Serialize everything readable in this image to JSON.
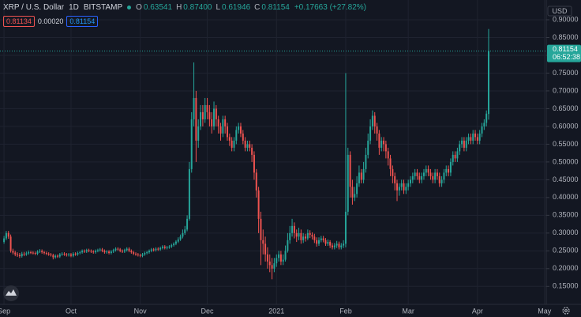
{
  "chart_data": {
    "type": "candlestick",
    "symbol": "XRP / U.S. Dollar",
    "interval": "1D",
    "exchange": "BITSTAMP",
    "ohlc_legend": [
      {
        "key": "O",
        "value": "0.63541"
      },
      {
        "key": "H",
        "value": "0.87400"
      },
      {
        "key": "L",
        "value": "0.61946"
      },
      {
        "key": "C",
        "value": "0.81154"
      }
    ],
    "change": "+0.17663 (+27.82%)",
    "indicator_values": [
      "0.81134",
      "0.00020",
      "0.81154"
    ],
    "currency": "USD",
    "countdown": "06:52:38",
    "up_color": "#26a69a",
    "down_color": "#ef5350",
    "grid": true,
    "xlim": [
      -1.8,
      242.8
    ],
    "xticks": [
      {
        "value": 0,
        "label": "Sep"
      },
      {
        "value": 30,
        "label": "Oct"
      },
      {
        "value": 61,
        "label": "Nov"
      },
      {
        "value": 91,
        "label": "Dec"
      },
      {
        "value": 122,
        "label": "2021"
      },
      {
        "value": 153,
        "label": "Feb"
      },
      {
        "value": 181,
        "label": "Mar"
      },
      {
        "value": 212,
        "label": "Apr"
      },
      {
        "value": 242,
        "label": "May"
      }
    ],
    "ylim": [
      0.0995,
      0.9556
    ],
    "yticks": [
      {
        "value": 0.15,
        "label": "0.15000"
      },
      {
        "value": 0.2,
        "label": "0.20000"
      },
      {
        "value": 0.25,
        "label": "0.25000"
      },
      {
        "value": 0.3,
        "label": "0.30000"
      },
      {
        "value": 0.35,
        "label": "0.35000"
      },
      {
        "value": 0.4,
        "label": "0.40000"
      },
      {
        "value": 0.45,
        "label": "0.45000"
      },
      {
        "value": 0.5,
        "label": "0.50000"
      },
      {
        "value": 0.55,
        "label": "0.55000"
      },
      {
        "value": 0.6,
        "label": "0.60000"
      },
      {
        "value": 0.65,
        "label": "0.65000"
      },
      {
        "value": 0.7,
        "label": "0.70000"
      },
      {
        "value": 0.75,
        "label": "0.75000"
      },
      {
        "value": 0.8,
        "label": "0.80000"
      },
      {
        "value": 0.85,
        "label": "0.85000"
      },
      {
        "value": 0.9,
        "label": "0.90000"
      }
    ],
    "open": [
      0.275,
      0.285,
      0.3,
      0.29,
      0.25,
      0.245,
      0.24,
      0.238,
      0.235,
      0.242,
      0.24,
      0.243,
      0.246,
      0.245,
      0.244,
      0.242,
      0.248,
      0.25,
      0.246,
      0.244,
      0.242,
      0.24,
      0.238,
      0.232,
      0.236,
      0.234,
      0.24,
      0.242,
      0.24,
      0.238,
      0.24,
      0.236,
      0.242,
      0.24,
      0.244,
      0.246,
      0.25,
      0.248,
      0.252,
      0.25,
      0.248,
      0.246,
      0.25,
      0.252,
      0.254,
      0.25,
      0.246,
      0.248,
      0.244,
      0.248,
      0.252,
      0.256,
      0.254,
      0.25,
      0.248,
      0.252,
      0.256,
      0.25,
      0.246,
      0.242,
      0.24,
      0.238,
      0.236,
      0.24,
      0.244,
      0.246,
      0.25,
      0.254,
      0.252,
      0.256,
      0.254,
      0.258,
      0.262,
      0.258,
      0.26,
      0.262,
      0.266,
      0.27,
      0.276,
      0.282,
      0.29,
      0.3,
      0.31,
      0.34,
      0.48,
      0.62,
      0.68,
      0.56,
      0.6,
      0.64,
      0.62,
      0.66,
      0.64,
      0.62,
      0.6,
      0.65,
      0.62,
      0.6,
      0.58,
      0.62,
      0.6,
      0.57,
      0.56,
      0.54,
      0.56,
      0.59,
      0.6,
      0.58,
      0.56,
      0.54,
      0.55,
      0.54,
      0.52,
      0.47,
      0.42,
      0.34,
      0.28,
      0.27,
      0.24,
      0.22,
      0.21,
      0.2,
      0.215,
      0.23,
      0.24,
      0.22,
      0.225,
      0.25,
      0.28,
      0.3,
      0.32,
      0.3,
      0.29,
      0.3,
      0.28,
      0.29,
      0.285,
      0.3,
      0.295,
      0.29,
      0.28,
      0.27,
      0.28,
      0.285,
      0.28,
      0.27,
      0.275,
      0.265,
      0.26,
      0.265,
      0.27,
      0.26,
      0.265,
      0.27,
      0.36,
      0.52,
      0.43,
      0.4,
      0.41,
      0.44,
      0.47,
      0.45,
      0.48,
      0.52,
      0.56,
      0.6,
      0.63,
      0.6,
      0.58,
      0.54,
      0.56,
      0.55,
      0.53,
      0.51,
      0.48,
      0.46,
      0.44,
      0.42,
      0.43,
      0.44,
      0.42,
      0.43,
      0.44,
      0.45,
      0.46,
      0.47,
      0.46,
      0.45,
      0.46,
      0.47,
      0.48,
      0.47,
      0.46,
      0.45,
      0.47,
      0.46,
      0.44,
      0.45,
      0.47,
      0.48,
      0.47,
      0.5,
      0.52,
      0.51,
      0.53,
      0.55,
      0.56,
      0.54,
      0.56,
      0.57,
      0.56,
      0.58,
      0.57,
      0.56,
      0.58,
      0.6,
      0.61,
      0.635
    ],
    "high": [
      0.292,
      0.306,
      0.306,
      0.296,
      0.256,
      0.25,
      0.246,
      0.244,
      0.247,
      0.247,
      0.248,
      0.251,
      0.25,
      0.249,
      0.248,
      0.252,
      0.255,
      0.254,
      0.25,
      0.248,
      0.246,
      0.244,
      0.242,
      0.24,
      0.24,
      0.244,
      0.246,
      0.246,
      0.244,
      0.244,
      0.244,
      0.246,
      0.246,
      0.248,
      0.25,
      0.254,
      0.254,
      0.256,
      0.256,
      0.254,
      0.252,
      0.254,
      0.256,
      0.258,
      0.258,
      0.254,
      0.252,
      0.252,
      0.252,
      0.256,
      0.26,
      0.26,
      0.258,
      0.254,
      0.256,
      0.26,
      0.26,
      0.254,
      0.25,
      0.246,
      0.244,
      0.242,
      0.244,
      0.248,
      0.25,
      0.254,
      0.258,
      0.258,
      0.26,
      0.26,
      0.262,
      0.266,
      0.266,
      0.264,
      0.266,
      0.27,
      0.274,
      0.28,
      0.288,
      0.296,
      0.31,
      0.32,
      0.35,
      0.5,
      0.64,
      0.78,
      0.7,
      0.62,
      0.66,
      0.66,
      0.68,
      0.68,
      0.66,
      0.64,
      0.67,
      0.66,
      0.63,
      0.61,
      0.63,
      0.63,
      0.61,
      0.58,
      0.57,
      0.57,
      0.6,
      0.61,
      0.61,
      0.59,
      0.57,
      0.56,
      0.56,
      0.55,
      0.53,
      0.48,
      0.43,
      0.36,
      0.31,
      0.29,
      0.26,
      0.24,
      0.23,
      0.23,
      0.24,
      0.25,
      0.25,
      0.24,
      0.265,
      0.3,
      0.32,
      0.34,
      0.33,
      0.31,
      0.315,
      0.31,
      0.3,
      0.298,
      0.31,
      0.308,
      0.302,
      0.298,
      0.288,
      0.288,
      0.292,
      0.292,
      0.286,
      0.282,
      0.28,
      0.272,
      0.272,
      0.278,
      0.276,
      0.272,
      0.28,
      0.75,
      0.54,
      0.53,
      0.45,
      0.43,
      0.46,
      0.49,
      0.48,
      0.5,
      0.54,
      0.58,
      0.62,
      0.645,
      0.64,
      0.61,
      0.59,
      0.57,
      0.57,
      0.56,
      0.54,
      0.52,
      0.49,
      0.47,
      0.45,
      0.44,
      0.45,
      0.45,
      0.44,
      0.45,
      0.46,
      0.47,
      0.48,
      0.48,
      0.47,
      0.47,
      0.48,
      0.49,
      0.49,
      0.48,
      0.47,
      0.48,
      0.48,
      0.47,
      0.46,
      0.48,
      0.49,
      0.49,
      0.51,
      0.53,
      0.53,
      0.54,
      0.56,
      0.57,
      0.57,
      0.57,
      0.58,
      0.58,
      0.59,
      0.59,
      0.58,
      0.59,
      0.61,
      0.62,
      0.645,
      0.874
    ],
    "low": [
      0.27,
      0.28,
      0.284,
      0.245,
      0.24,
      0.235,
      0.233,
      0.23,
      0.231,
      0.235,
      0.236,
      0.239,
      0.241,
      0.24,
      0.238,
      0.238,
      0.244,
      0.242,
      0.24,
      0.238,
      0.236,
      0.234,
      0.226,
      0.228,
      0.23,
      0.23,
      0.236,
      0.236,
      0.234,
      0.234,
      0.232,
      0.232,
      0.236,
      0.236,
      0.24,
      0.242,
      0.244,
      0.244,
      0.246,
      0.244,
      0.242,
      0.242,
      0.246,
      0.248,
      0.246,
      0.242,
      0.242,
      0.24,
      0.24,
      0.244,
      0.248,
      0.25,
      0.246,
      0.244,
      0.244,
      0.248,
      0.246,
      0.242,
      0.238,
      0.236,
      0.234,
      0.232,
      0.232,
      0.236,
      0.24,
      0.242,
      0.246,
      0.248,
      0.248,
      0.25,
      0.25,
      0.254,
      0.254,
      0.254,
      0.256,
      0.258,
      0.262,
      0.266,
      0.272,
      0.278,
      0.285,
      0.295,
      0.305,
      0.335,
      0.47,
      0.6,
      0.5,
      0.54,
      0.59,
      0.6,
      0.61,
      0.62,
      0.6,
      0.58,
      0.59,
      0.6,
      0.58,
      0.56,
      0.57,
      0.58,
      0.56,
      0.545,
      0.53,
      0.53,
      0.55,
      0.58,
      0.57,
      0.55,
      0.53,
      0.53,
      0.53,
      0.5,
      0.45,
      0.4,
      0.3,
      0.21,
      0.24,
      0.22,
      0.2,
      0.19,
      0.17,
      0.19,
      0.205,
      0.22,
      0.21,
      0.21,
      0.22,
      0.245,
      0.27,
      0.29,
      0.285,
      0.275,
      0.28,
      0.27,
      0.272,
      0.276,
      0.28,
      0.286,
      0.282,
      0.272,
      0.262,
      0.264,
      0.274,
      0.274,
      0.264,
      0.264,
      0.258,
      0.254,
      0.254,
      0.258,
      0.254,
      0.254,
      0.258,
      0.26,
      0.35,
      0.4,
      0.38,
      0.39,
      0.4,
      0.43,
      0.44,
      0.44,
      0.47,
      0.51,
      0.55,
      0.59,
      0.58,
      0.56,
      0.52,
      0.53,
      0.53,
      0.51,
      0.49,
      0.46,
      0.44,
      0.42,
      0.39,
      0.405,
      0.42,
      0.41,
      0.41,
      0.42,
      0.43,
      0.44,
      0.45,
      0.45,
      0.44,
      0.44,
      0.45,
      0.46,
      0.46,
      0.45,
      0.44,
      0.44,
      0.45,
      0.43,
      0.43,
      0.44,
      0.46,
      0.46,
      0.46,
      0.49,
      0.5,
      0.5,
      0.52,
      0.54,
      0.53,
      0.53,
      0.55,
      0.55,
      0.55,
      0.56,
      0.55,
      0.55,
      0.57,
      0.59,
      0.6,
      0.619
    ],
    "close": [
      0.285,
      0.3,
      0.29,
      0.25,
      0.245,
      0.24,
      0.238,
      0.235,
      0.242,
      0.24,
      0.243,
      0.246,
      0.245,
      0.244,
      0.242,
      0.248,
      0.25,
      0.246,
      0.244,
      0.242,
      0.24,
      0.238,
      0.232,
      0.236,
      0.234,
      0.24,
      0.242,
      0.24,
      0.238,
      0.24,
      0.236,
      0.242,
      0.24,
      0.244,
      0.246,
      0.25,
      0.248,
      0.252,
      0.25,
      0.248,
      0.246,
      0.25,
      0.252,
      0.254,
      0.25,
      0.246,
      0.248,
      0.244,
      0.248,
      0.252,
      0.256,
      0.254,
      0.25,
      0.248,
      0.252,
      0.256,
      0.25,
      0.246,
      0.242,
      0.24,
      0.238,
      0.236,
      0.24,
      0.244,
      0.246,
      0.25,
      0.254,
      0.252,
      0.256,
      0.254,
      0.258,
      0.262,
      0.258,
      0.26,
      0.262,
      0.266,
      0.27,
      0.276,
      0.282,
      0.29,
      0.3,
      0.31,
      0.34,
      0.48,
      0.62,
      0.68,
      0.56,
      0.6,
      0.64,
      0.62,
      0.66,
      0.64,
      0.62,
      0.6,
      0.65,
      0.62,
      0.6,
      0.58,
      0.62,
      0.6,
      0.57,
      0.56,
      0.54,
      0.56,
      0.59,
      0.6,
      0.58,
      0.56,
      0.54,
      0.55,
      0.54,
      0.52,
      0.47,
      0.42,
      0.34,
      0.28,
      0.27,
      0.24,
      0.22,
      0.21,
      0.2,
      0.215,
      0.23,
      0.24,
      0.22,
      0.225,
      0.25,
      0.28,
      0.3,
      0.32,
      0.3,
      0.29,
      0.3,
      0.28,
      0.29,
      0.285,
      0.3,
      0.295,
      0.29,
      0.28,
      0.27,
      0.28,
      0.285,
      0.28,
      0.27,
      0.275,
      0.265,
      0.26,
      0.265,
      0.27,
      0.26,
      0.265,
      0.27,
      0.36,
      0.52,
      0.43,
      0.4,
      0.41,
      0.44,
      0.47,
      0.45,
      0.48,
      0.52,
      0.56,
      0.6,
      0.63,
      0.6,
      0.58,
      0.54,
      0.56,
      0.55,
      0.53,
      0.51,
      0.48,
      0.46,
      0.44,
      0.42,
      0.43,
      0.44,
      0.42,
      0.43,
      0.44,
      0.45,
      0.46,
      0.47,
      0.46,
      0.45,
      0.46,
      0.47,
      0.48,
      0.47,
      0.46,
      0.45,
      0.47,
      0.46,
      0.44,
      0.45,
      0.47,
      0.48,
      0.47,
      0.5,
      0.52,
      0.51,
      0.53,
      0.55,
      0.56,
      0.54,
      0.56,
      0.57,
      0.56,
      0.58,
      0.57,
      0.56,
      0.58,
      0.6,
      0.61,
      0.636,
      0.812
    ]
  }
}
